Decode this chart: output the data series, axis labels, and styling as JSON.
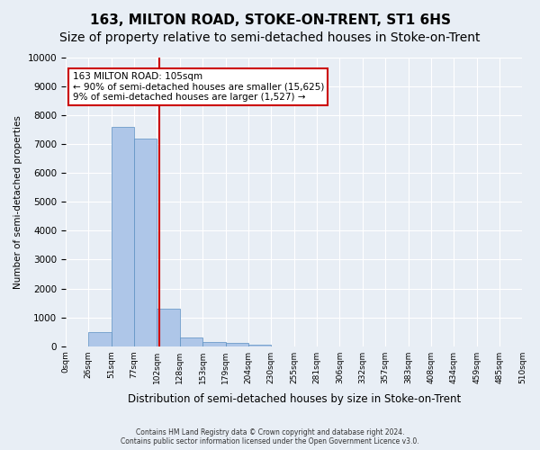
{
  "title": "163, MILTON ROAD, STOKE-ON-TRENT, ST1 6HS",
  "subtitle": "Size of property relative to semi-detached houses in Stoke-on-Trent",
  "xlabel": "Distribution of semi-detached houses by size in Stoke-on-Trent",
  "ylabel": "Number of semi-detached properties",
  "footnote": "Contains HM Land Registry data © Crown copyright and database right 2024.\nContains public sector information licensed under the Open Government Licence v3.0.",
  "bin_labels": [
    "0sqm",
    "26sqm",
    "51sqm",
    "77sqm",
    "102sqm",
    "128sqm",
    "153sqm",
    "179sqm",
    "204sqm",
    "230sqm",
    "255sqm",
    "281sqm",
    "306sqm",
    "332sqm",
    "357sqm",
    "383sqm",
    "408sqm",
    "434sqm",
    "459sqm",
    "485sqm",
    "510sqm"
  ],
  "bar_values": [
    0,
    500,
    7600,
    7200,
    1300,
    300,
    150,
    100,
    50,
    0,
    0,
    0,
    0,
    0,
    0,
    0,
    0,
    0,
    0,
    0
  ],
  "bar_color": "#aec6e8",
  "bar_edge_color": "#5a8fc2",
  "marker_line_color": "#cc0000",
  "annotation_text_line1": "163 MILTON ROAD: 105sqm",
  "annotation_text_line2": "← 90% of semi-detached houses are smaller (15,625)",
  "annotation_text_line3": "9% of semi-detached houses are larger (1,527) →",
  "annotation_box_color": "#ffffff",
  "annotation_border_color": "#cc0000",
  "ylim": [
    0,
    10000
  ],
  "yticks": [
    0,
    1000,
    2000,
    3000,
    4000,
    5000,
    6000,
    7000,
    8000,
    9000,
    10000
  ],
  "background_color": "#e8eef5",
  "grid_color": "#ffffff",
  "title_fontsize": 11,
  "subtitle_fontsize": 10
}
